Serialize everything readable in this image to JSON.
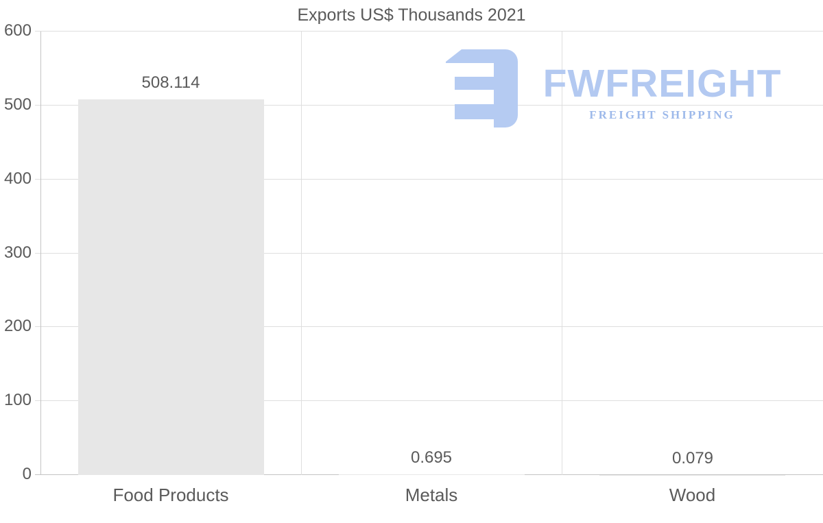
{
  "title": "Exports US$ Thousands 2021",
  "watermark": {
    "brand": "FWFREIGHT",
    "tagline": "FREIGHT SHIPPING",
    "brand_color": "#b3c9f1",
    "tagline_color": "#9db9ea",
    "glyph_color": "#b5cbf2"
  },
  "colors": {
    "bar_fill": "#e7e7e7",
    "gridline": "#dedede",
    "axis": "#c3c3c3",
    "text": "#5a5a5a"
  },
  "chart_data": {
    "type": "bar",
    "title": "Exports US$ Thousands 2021",
    "categories": [
      "Food Products",
      "Metals",
      "Wood"
    ],
    "values": [
      508.114,
      0.695,
      0.079
    ],
    "value_labels": [
      "508.114",
      "0.695",
      "0.079"
    ],
    "xlabel": "",
    "ylabel": "",
    "ylim": [
      0,
      600
    ],
    "yticks": [
      0,
      100,
      200,
      300,
      400,
      500,
      600
    ],
    "grid": true,
    "legend": false,
    "bar_color": "#e7e7e7",
    "layout": "single series, one bar per category, value labels above bars, watermark logo top-right"
  }
}
